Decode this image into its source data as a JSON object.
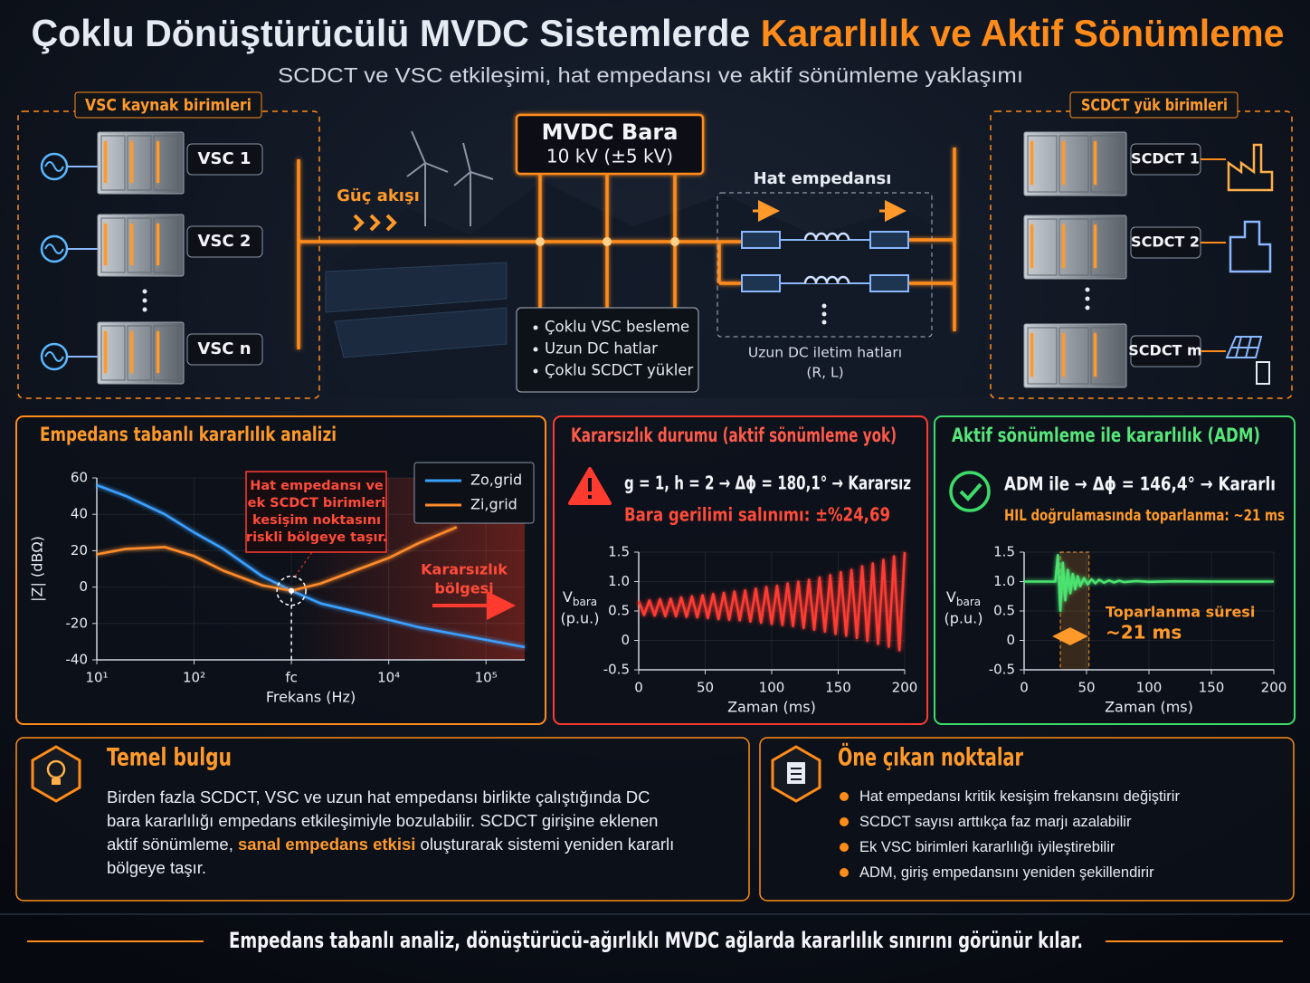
{
  "header": {
    "title": "Çoklu Dönüştürücülü MVDC Sistemlerde",
    "title_highlight": "Kararlılık ve Aktif Sönümleme",
    "subtitle": "SCDCT ve VSC etkileşimi, hat empedansı ve aktif sönümleme yaklaşımı"
  },
  "diagram": {
    "sources": {
      "title": "VSC kaynak birimleri",
      "units": [
        "VSC 1",
        "VSC 2",
        "VSC n"
      ]
    },
    "power_flow": "Güç akışı",
    "bus": {
      "title": "MVDC Bara",
      "rating": "10 kV (±5 kV)",
      "notes": [
        "Çoklu VSC besleme",
        "Uzun DC hatlar",
        "Çoklu SCDCT yükler"
      ]
    },
    "line": {
      "title": "Hat empedansı",
      "caption": [
        "Uzun DC iletim hatları",
        "(R, L)"
      ]
    },
    "loads": {
      "title": "SCDCT yük birimleri",
      "units": [
        "SCDCT 1",
        "SCDCT 2",
        "SCDCT m"
      ]
    }
  },
  "impedance_panel": {
    "title": "Empedans tabanlı kararlılık analizi",
    "chart": {
      "type": "line",
      "x_label": "Frekans (Hz)",
      "y_label": "|Z| (dBΩ)",
      "xscale": "log",
      "x": [
        10,
        20,
        50,
        100,
        200,
        500,
        1000,
        2000,
        5000,
        10000,
        20000,
        50000,
        100000,
        250000
      ],
      "xlim": [
        10,
        250000
      ],
      "xticks": [
        {
          "value": 10,
          "label": "10¹"
        },
        {
          "value": 100,
          "label": "10²"
        },
        {
          "value": 1000,
          "label": "fc"
        },
        {
          "value": 10000,
          "label": "10⁴"
        },
        {
          "value": 100000,
          "label": "10⁵"
        }
      ],
      "ylim": [
        -40,
        60
      ],
      "yticks": [
        -40,
        -20,
        0,
        20,
        40,
        60
      ],
      "grid": true,
      "legend": "upper right",
      "series": [
        {
          "name": "Zo,grid",
          "color": "#3aa0ff",
          "values": [
            56,
            50,
            40,
            30,
            21,
            6,
            -2,
            -9,
            -14,
            -18,
            -22,
            -26,
            -29,
            -33
          ]
        },
        {
          "name": "Zi,grid",
          "color": "#ff8c2a",
          "values": [
            18,
            21,
            22,
            17,
            9,
            1,
            -2,
            2,
            10,
            16,
            24,
            33,
            null,
            null
          ]
        }
      ],
      "crossing": {
        "x": 1000,
        "y": -2
      },
      "annotation": [
        "Hat empedansı ve",
        "ek SCDCT birimleri",
        "kesişim noktasını",
        "riskli bölgeye taşır."
      ],
      "unstable_region": [
        "Kararsızlık",
        "bölgesi"
      ]
    }
  },
  "unstable_panel": {
    "title": "Kararsızlık durumu (aktif sönümleme yok)",
    "result": "g = 1, h = 2 → Δϕ = 180,1° → Kararsız",
    "oscillation": "Bara gerilimi salınımı: ±%24,69",
    "chart": {
      "type": "line",
      "x_label": "Zaman (ms)",
      "y_label": {
        "symbol": "V",
        "subscript": "bara",
        "unit": "(p.u.)"
      },
      "x": [
        0,
        4,
        8,
        12,
        16,
        20,
        24,
        28,
        32,
        36,
        40,
        44,
        48,
        52,
        56,
        60,
        64,
        68,
        72,
        76,
        80,
        84,
        88,
        92,
        96,
        100,
        104,
        108,
        112,
        116,
        120,
        124,
        128,
        132,
        136,
        140,
        144,
        148,
        152,
        156,
        160,
        164,
        168,
        172,
        176,
        180,
        184,
        188,
        192,
        196,
        200
      ],
      "values": [
        0.67,
        0.43,
        0.68,
        0.42,
        0.7,
        0.41,
        0.71,
        0.41,
        0.73,
        0.4,
        0.75,
        0.39,
        0.77,
        0.38,
        0.79,
        0.36,
        0.81,
        0.35,
        0.83,
        0.34,
        0.85,
        0.32,
        0.88,
        0.3,
        0.91,
        0.28,
        0.93,
        0.26,
        0.97,
        0.24,
        1.0,
        0.21,
        1.03,
        0.18,
        1.07,
        0.15,
        1.11,
        0.11,
        1.16,
        0.08,
        1.2,
        0.04,
        1.26,
        -0.01,
        1.31,
        -0.06,
        1.37,
        -0.11,
        1.43,
        -0.17,
        1.5
      ],
      "color": "#ff3b30",
      "xlim": [
        0,
        200
      ],
      "xticks": [
        0,
        50,
        100,
        150,
        200
      ],
      "ylim": [
        -0.5,
        1.5
      ],
      "yticks": [
        -0.5,
        0,
        0.5,
        {
          "value": 1,
          "label": "1.0"
        },
        1.5
      ],
      "grid": true
    }
  },
  "stable_panel": {
    "title": "Aktif sönümleme ile kararlılık (ADM)",
    "result": "ADM ile → Δϕ = 146,4° → Kararlı",
    "recovery": "HIL doğrulamasında toparlanma: ~21 ms",
    "chart": {
      "type": "line",
      "x_label": "Zaman (ms)",
      "y_label": {
        "symbol": "V",
        "subscript": "bara",
        "unit": "(p.u.)"
      },
      "x": [
        0,
        25,
        27,
        29,
        31,
        33,
        35,
        37,
        39,
        41,
        43,
        45,
        48,
        51,
        54,
        57,
        60,
        64,
        68,
        72,
        76,
        80,
        90,
        100,
        120,
        150,
        200
      ],
      "values": [
        1,
        1,
        1.45,
        0.5,
        1.32,
        0.68,
        1.2,
        0.8,
        1.13,
        0.87,
        1.09,
        0.92,
        1.06,
        0.95,
        1.04,
        0.97,
        1.03,
        0.98,
        1.02,
        0.985,
        1.015,
        0.99,
        1.01,
        0.995,
        1.005,
        1,
        1
      ],
      "color": "#4be36f",
      "xlim": [
        0,
        200
      ],
      "xticks": [
        0,
        50,
        100,
        150,
        200
      ],
      "ylim": [
        -0.5,
        1.5
      ],
      "yticks": [
        -0.5,
        0,
        0.5,
        {
          "value": 1,
          "label": "1.0"
        },
        1.5
      ],
      "grid": true,
      "recovery_band": [
        29,
        52
      ],
      "recovery_label": [
        "Toparlanma süresi",
        "~21 ms"
      ]
    }
  },
  "finding": {
    "title": "Temel bulgu",
    "text": [
      "Birden fazla SCDCT, VSC ve uzun hat empedansı birlikte çalıştığında DC bara kararlılığı empedans etkileşimiyle bozulabilir. SCDCT girişine eklenen aktif sönümleme, ",
      "sanal empedans etkisi",
      " oluşturarak sistemi yeniden kararlı bölgeye taşır."
    ]
  },
  "highlights": {
    "title": "Öne çıkan noktalar",
    "items": [
      "Hat empedansı kritik kesişim frekansını değiştirir",
      "SCDCT sayısı arttıkça faz marjı azalabilir",
      "Ek VSC birimleri kararlılığı iyileştirebilir",
      "ADM, giriş empedansını yeniden şekillendirir"
    ]
  },
  "footer": "Empedans tabanlı analiz, dönüştürücü-ağırlıklı MVDC ağlarda kararlılık sınırını görünür kılar."
}
